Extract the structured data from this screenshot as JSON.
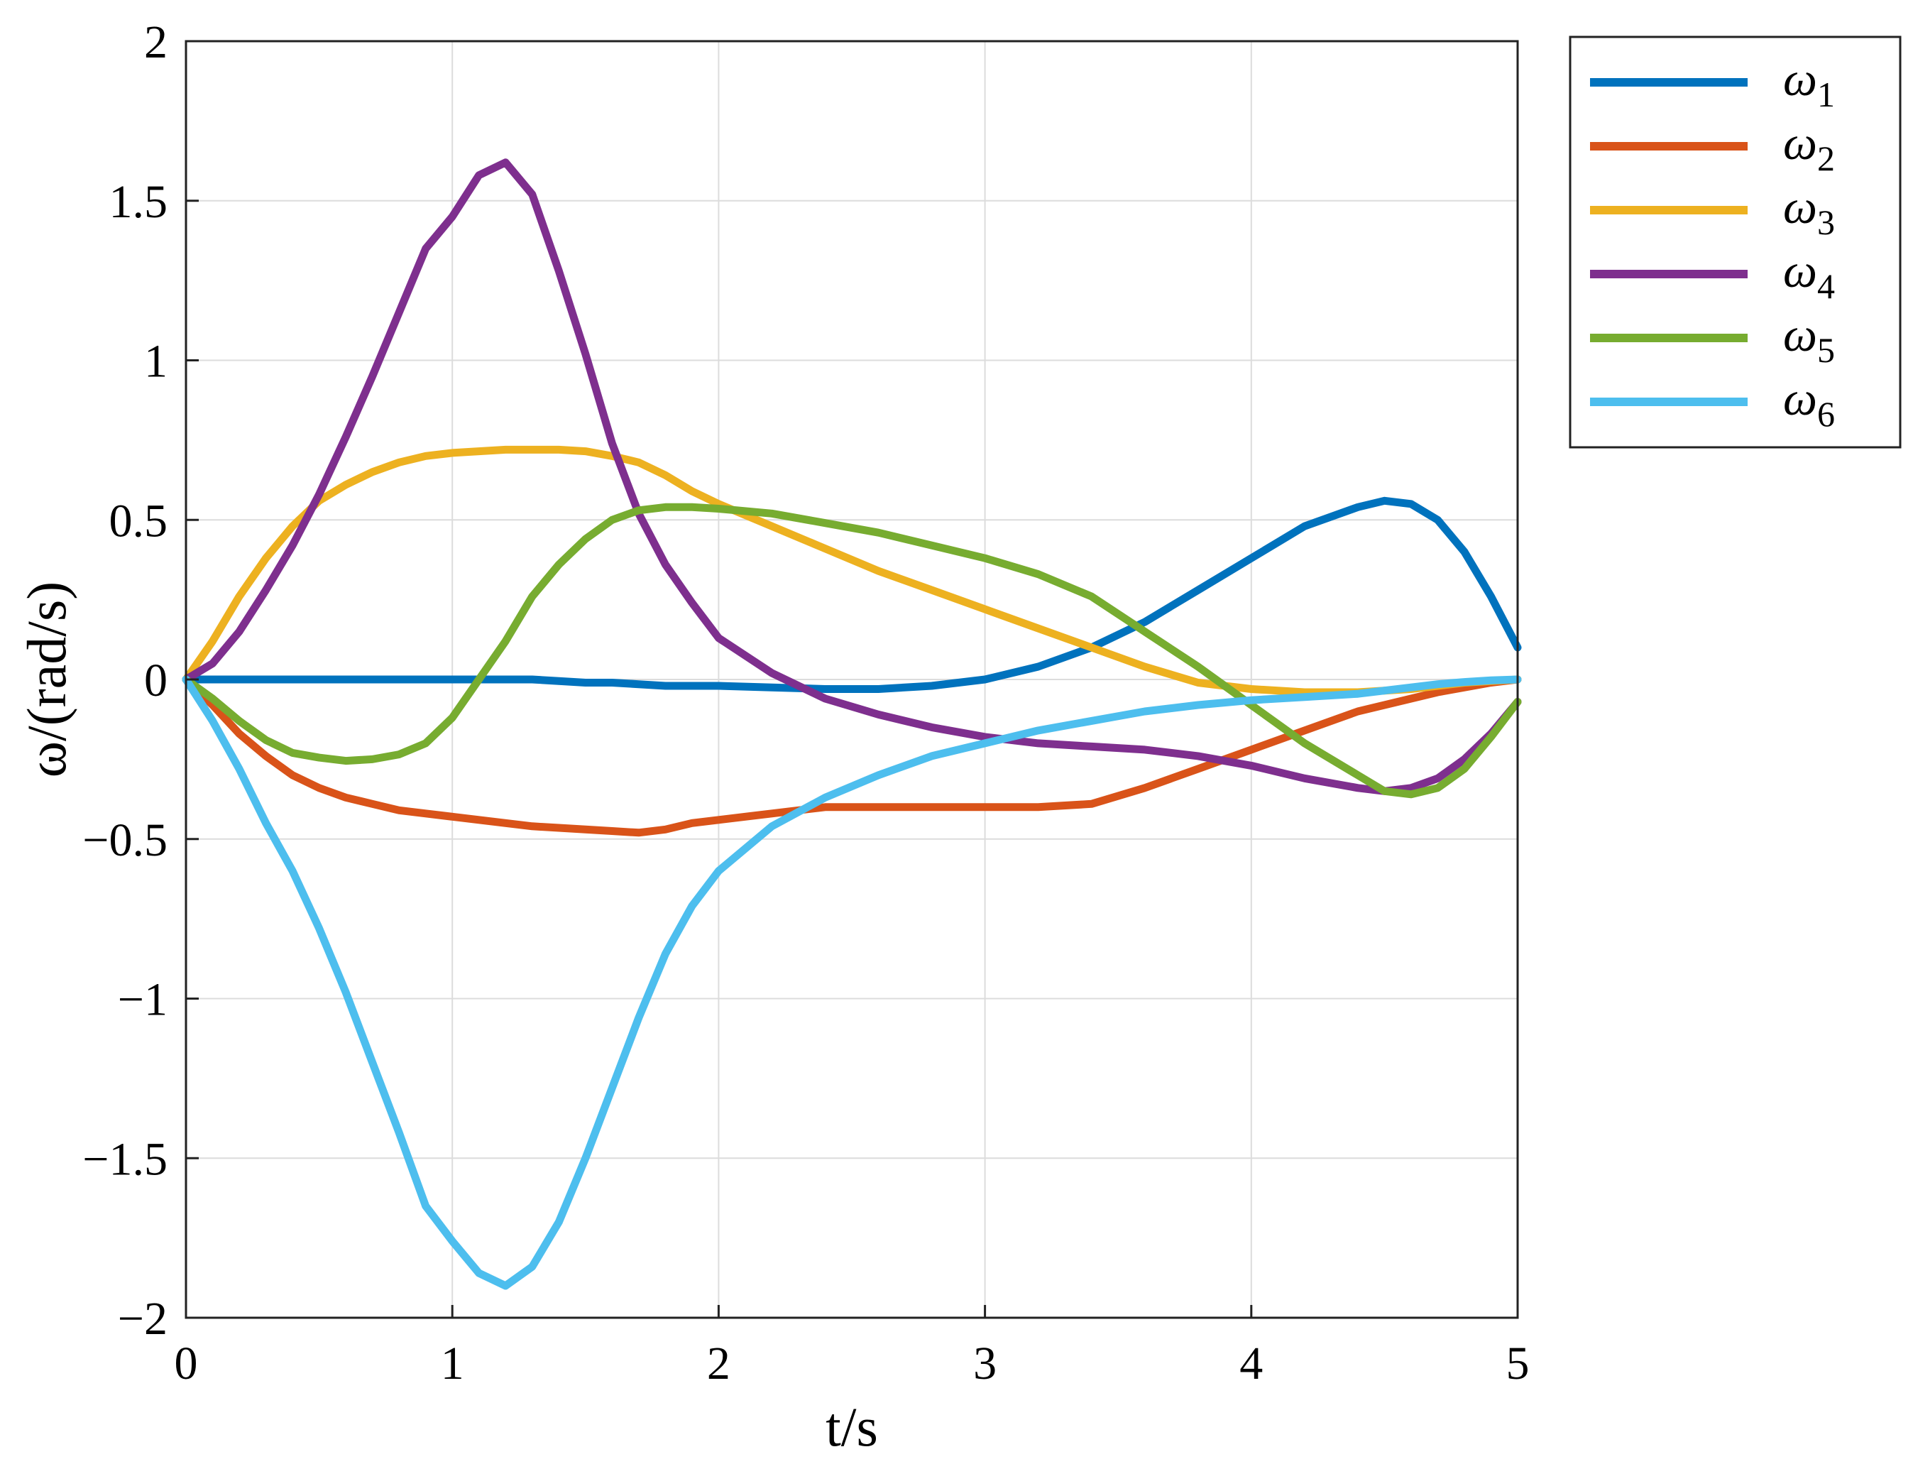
{
  "chart_data": {
    "type": "line",
    "xlabel": "t/s",
    "ylabel": "ω/(rad/s)",
    "xlim": [
      0,
      5
    ],
    "ylim": [
      -2,
      2
    ],
    "grid": true,
    "legend_position": "outside-top-right",
    "x_ticks": [
      "0",
      "1",
      "2",
      "3",
      "4",
      "5"
    ],
    "y_ticks": [
      "−2",
      "−1.5",
      "−1",
      "−0.5",
      "0",
      "0.5",
      "1",
      "1.5",
      "2"
    ],
    "x": [
      0,
      0.1,
      0.2,
      0.3,
      0.4,
      0.5,
      0.6,
      0.7,
      0.8,
      0.9,
      1.0,
      1.1,
      1.2,
      1.3,
      1.4,
      1.5,
      1.6,
      1.7,
      1.8,
      1.9,
      2.0,
      2.2,
      2.4,
      2.6,
      2.8,
      3.0,
      3.2,
      3.4,
      3.6,
      3.8,
      4.0,
      4.2,
      4.4,
      4.5,
      4.6,
      4.7,
      4.8,
      4.9,
      5.0
    ],
    "series": [
      {
        "name": "ω1",
        "label_base": "ω",
        "label_sub": "1",
        "color": "#0072BD",
        "values": [
          0,
          0,
          0,
          0,
          0,
          0,
          0,
          0,
          0,
          0,
          0,
          0,
          0,
          0,
          -0.005,
          -0.01,
          -0.01,
          -0.015,
          -0.02,
          -0.02,
          -0.02,
          -0.025,
          -0.03,
          -0.03,
          -0.02,
          0,
          0.04,
          0.1,
          0.18,
          0.28,
          0.38,
          0.48,
          0.54,
          0.56,
          0.55,
          0.5,
          0.4,
          0.26,
          0.1
        ]
      },
      {
        "name": "ω2",
        "label_base": "ω",
        "label_sub": "2",
        "color": "#D95319",
        "values": [
          0,
          -0.08,
          -0.17,
          -0.24,
          -0.3,
          -0.34,
          -0.37,
          -0.39,
          -0.41,
          -0.42,
          -0.43,
          -0.44,
          -0.45,
          -0.46,
          -0.465,
          -0.47,
          -0.475,
          -0.48,
          -0.47,
          -0.45,
          -0.44,
          -0.42,
          -0.4,
          -0.4,
          -0.4,
          -0.4,
          -0.4,
          -0.39,
          -0.34,
          -0.28,
          -0.22,
          -0.16,
          -0.1,
          -0.08,
          -0.06,
          -0.04,
          -0.025,
          -0.01,
          0
        ]
      },
      {
        "name": "ω3",
        "label_base": "ω",
        "label_sub": "3",
        "color": "#EDB120",
        "values": [
          0,
          0.12,
          0.26,
          0.38,
          0.48,
          0.56,
          0.61,
          0.65,
          0.68,
          0.7,
          0.71,
          0.715,
          0.72,
          0.72,
          0.72,
          0.715,
          0.7,
          0.68,
          0.64,
          0.59,
          0.55,
          0.48,
          0.41,
          0.34,
          0.28,
          0.22,
          0.16,
          0.1,
          0.04,
          -0.01,
          -0.03,
          -0.04,
          -0.04,
          -0.035,
          -0.03,
          -0.02,
          -0.01,
          -0.005,
          0
        ]
      },
      {
        "name": "ω4",
        "label_base": "ω",
        "label_sub": "4",
        "color": "#7E2F8E",
        "values": [
          0,
          0.05,
          0.15,
          0.28,
          0.42,
          0.58,
          0.76,
          0.95,
          1.15,
          1.35,
          1.45,
          1.58,
          1.62,
          1.52,
          1.28,
          1.02,
          0.74,
          0.52,
          0.36,
          0.24,
          0.13,
          0.02,
          -0.06,
          -0.11,
          -0.15,
          -0.18,
          -0.2,
          -0.21,
          -0.22,
          -0.24,
          -0.27,
          -0.31,
          -0.34,
          -0.35,
          -0.34,
          -0.31,
          -0.25,
          -0.17,
          -0.07
        ]
      },
      {
        "name": "ω5",
        "label_base": "ω",
        "label_sub": "5",
        "color": "#77AC30",
        "values": [
          0,
          -0.06,
          -0.13,
          -0.19,
          -0.23,
          -0.245,
          -0.255,
          -0.25,
          -0.235,
          -0.2,
          -0.12,
          0,
          0.12,
          0.26,
          0.36,
          0.44,
          0.5,
          0.53,
          0.54,
          0.54,
          0.535,
          0.52,
          0.49,
          0.46,
          0.42,
          0.38,
          0.33,
          0.26,
          0.15,
          0.04,
          -0.08,
          -0.2,
          -0.3,
          -0.35,
          -0.36,
          -0.34,
          -0.28,
          -0.18,
          -0.07
        ]
      },
      {
        "name": "ω6",
        "label_base": "ω",
        "label_sub": "6",
        "color": "#4DBEEE",
        "values": [
          0,
          -0.13,
          -0.28,
          -0.45,
          -0.6,
          -0.78,
          -0.98,
          -1.2,
          -1.42,
          -1.65,
          -1.76,
          -1.86,
          -1.9,
          -1.84,
          -1.7,
          -1.5,
          -1.28,
          -1.06,
          -0.86,
          -0.71,
          -0.6,
          -0.46,
          -0.37,
          -0.3,
          -0.24,
          -0.2,
          -0.16,
          -0.13,
          -0.1,
          -0.08,
          -0.065,
          -0.055,
          -0.045,
          -0.035,
          -0.025,
          -0.015,
          -0.008,
          -0.003,
          0
        ]
      }
    ]
  }
}
